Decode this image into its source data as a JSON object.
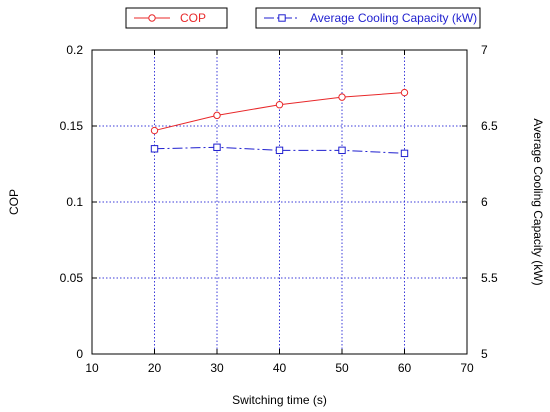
{
  "colors": {
    "cop": "#e8282a",
    "capacity": "#1f1fcf",
    "grid": "#3b3bd9",
    "axis": "#000000"
  },
  "legend": {
    "cop_label": "COP",
    "capacity_label": "Average Cooling Capacity (kW)"
  },
  "chart_data": {
    "type": "line",
    "xlabel": "Switching time (s)",
    "ylabel": "COP",
    "y2label": "Average Cooling Capacity (kW)",
    "xlim": [
      10,
      70
    ],
    "ylim": [
      0,
      0.2
    ],
    "y2lim": [
      5,
      7
    ],
    "xticks": [
      "10",
      "20",
      "30",
      "40",
      "50",
      "60",
      "70"
    ],
    "yticks": [
      "0",
      "0.05",
      "0.1",
      "0.15",
      "0.2"
    ],
    "y2ticks": [
      "5",
      "5.5",
      "6",
      "6.5",
      "7"
    ],
    "grid": true,
    "legend_position": "top",
    "series": [
      {
        "name": "COP",
        "axis": "left",
        "marker": "circle",
        "line_style": "solid",
        "color_key": "cop",
        "x": [
          20,
          30,
          40,
          50,
          60
        ],
        "y": [
          0.147,
          0.157,
          0.164,
          0.169,
          0.172
        ]
      },
      {
        "name": "Average Cooling Capacity (kW)",
        "axis": "right",
        "marker": "square",
        "line_style": "dash-dot",
        "color_key": "capacity",
        "x": [
          20,
          30,
          40,
          50,
          60
        ],
        "y": [
          6.35,
          6.36,
          6.34,
          6.34,
          6.32
        ]
      }
    ]
  }
}
